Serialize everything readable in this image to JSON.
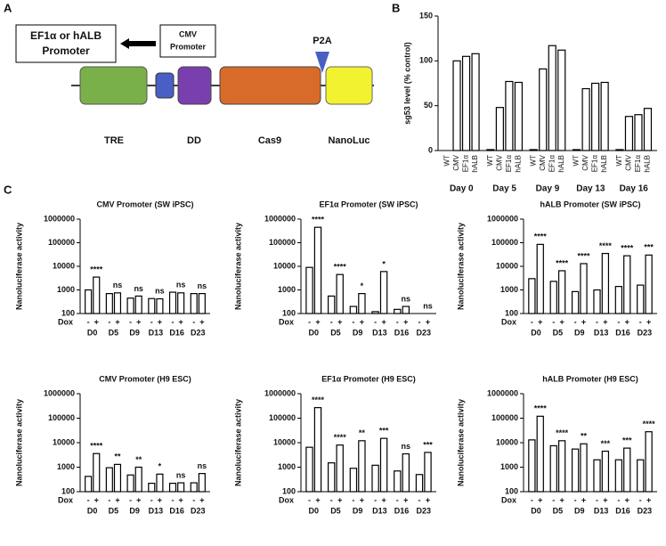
{
  "panel_labels": [
    "A",
    "B",
    "C"
  ],
  "diagram": {
    "target_promoter": [
      "EF1α or hALB",
      "Promoter"
    ],
    "cmv_promoter": [
      "CMV",
      "Promoter"
    ],
    "p2a": "P2A",
    "parts": [
      "TRE",
      "DD",
      "Cas9",
      "NanoLuc"
    ]
  },
  "chart_data": [
    {
      "type": "bar",
      "ylabel": "sg53 level (% control)",
      "categories": [
        "WT",
        "CMV",
        "EF1α",
        "hALB",
        "WT",
        "CMV",
        "EF1α",
        "hALB",
        "WT",
        "CMV",
        "EF1α",
        "hALB",
        "WT",
        "CMV",
        "EF1α",
        "hALB",
        "WT",
        "CMV",
        "EF1α",
        "hALB"
      ],
      "groups": [
        "Day 0",
        "Day 5",
        "Day 9",
        "Day 13",
        "Day 16"
      ],
      "values": [
        0,
        100,
        105,
        108,
        1,
        48,
        77,
        76,
        1,
        91,
        117,
        112,
        1,
        69,
        75,
        76,
        1,
        38,
        40,
        47
      ],
      "color": "#ffffff",
      "ylim": [
        0,
        150
      ],
      "yticks": [
        0,
        50,
        100,
        150
      ]
    },
    {
      "type": "bar",
      "title": "CMV Promoter (SW iPSC)",
      "ylabel": "Nanoluciferase activity",
      "xlabel": "Dox",
      "categories": [
        "-",
        "+",
        "-",
        "+",
        "-",
        "+",
        "-",
        "+",
        "-",
        "+",
        "-",
        "+"
      ],
      "groups": [
        "D0",
        "D5",
        "D9",
        "D13",
        "D16",
        "D23"
      ],
      "values": [
        1000,
        3500,
        700,
        750,
        450,
        550,
        430,
        420,
        800,
        750,
        700,
        700
      ],
      "annotations": [
        "****",
        "ns",
        "ns",
        "ns",
        "ns",
        "ns"
      ],
      "color": "#ffffff",
      "log": true,
      "ylim": [
        100,
        1000000
      ],
      "yticks": [
        100,
        1000,
        10000,
        100000,
        1000000
      ]
    },
    {
      "type": "bar",
      "title": "EF1α Promoter (SW iPSC)",
      "ylabel": "Nanoluciferase activity",
      "xlabel": "Dox",
      "categories": [
        "-",
        "+",
        "-",
        "+",
        "-",
        "+",
        "-",
        "+",
        "-",
        "+",
        "-",
        "+"
      ],
      "groups": [
        "D0",
        "D5",
        "D9",
        "D13",
        "D16",
        "D23"
      ],
      "values": [
        9000,
        450000,
        550,
        4500,
        200,
        700,
        120,
        6000,
        150,
        200,
        null,
        null
      ],
      "annotations": [
        "****",
        "****",
        "*",
        "*",
        "ns",
        "ns"
      ],
      "color": "#ffffff",
      "log": true,
      "ylim": [
        100,
        1000000
      ],
      "yticks": [
        100,
        1000,
        10000,
        100000,
        1000000
      ]
    },
    {
      "type": "bar",
      "title": "hALB Promoter (SW iPSC)",
      "ylabel": "Nanoluciferase activity",
      "xlabel": "Dox",
      "categories": [
        "-",
        "+",
        "-",
        "+",
        "-",
        "+",
        "-",
        "+",
        "-",
        "+",
        "-",
        "+"
      ],
      "groups": [
        "D0",
        "D5",
        "D9",
        "D13",
        "D16",
        "D23"
      ],
      "values": [
        3000,
        85000,
        2300,
        6500,
        850,
        13000,
        1000,
        35000,
        1400,
        28000,
        1600,
        30000
      ],
      "annotations": [
        "****",
        "****",
        "****",
        "****",
        "****",
        "***"
      ],
      "color": "#ffffff",
      "log": true,
      "ylim": [
        100,
        1000000
      ],
      "yticks": [
        100,
        1000,
        10000,
        100000,
        1000000
      ]
    },
    {
      "type": "bar",
      "title": "CMV Promoter (H9 ESC)",
      "ylabel": "Nanoluciferase activity",
      "xlabel": "Dox",
      "categories": [
        "-",
        "+",
        "-",
        "+",
        "-",
        "+",
        "-",
        "+",
        "-",
        "+",
        "-",
        "+"
      ],
      "groups": [
        "D0",
        "D5",
        "D9",
        "D13",
        "D16",
        "D23"
      ],
      "values": [
        420,
        3600,
        950,
        1300,
        480,
        1000,
        220,
        520,
        220,
        230,
        230,
        550
      ],
      "annotations": [
        "****",
        "**",
        "**",
        "*",
        "ns",
        "ns"
      ],
      "color": "#ffffff",
      "log": true,
      "ylim": [
        100,
        1000000
      ],
      "yticks": [
        100,
        1000,
        10000,
        100000,
        1000000
      ]
    },
    {
      "type": "bar",
      "title": "EF1α Promoter (H9 ESC)",
      "ylabel": "Nanoluciferase activity",
      "xlabel": "Dox",
      "categories": [
        "-",
        "+",
        "-",
        "+",
        "-",
        "+",
        "-",
        "+",
        "-",
        "+",
        "-",
        "+"
      ],
      "groups": [
        "D0",
        "D5",
        "D9",
        "D13",
        "D16",
        "D23"
      ],
      "values": [
        6500,
        270000,
        1500,
        8000,
        900,
        12000,
        1200,
        15000,
        700,
        3500,
        500,
        4000
      ],
      "annotations": [
        "****",
        "****",
        "**",
        "***",
        "ns",
        "***"
      ],
      "color": "#ffffff",
      "log": true,
      "ylim": [
        100,
        1000000
      ],
      "yticks": [
        100,
        1000,
        10000,
        100000,
        1000000
      ]
    },
    {
      "type": "bar",
      "title": "hALB Promoter (H9 ESC)",
      "ylabel": "Nanoluciferase activity",
      "xlabel": "Dox",
      "categories": [
        "-",
        "+",
        "-",
        "+",
        "-",
        "+",
        "-",
        "+",
        "-",
        "+",
        "-",
        "+"
      ],
      "groups": [
        "D0",
        "D5",
        "D9",
        "D13",
        "D16",
        "D23"
      ],
      "values": [
        13000,
        120000,
        7500,
        12000,
        5500,
        9000,
        2000,
        4500,
        2000,
        6000,
        2000,
        28000
      ],
      "annotations": [
        "****",
        "****",
        "**",
        "***",
        "***",
        "****"
      ],
      "color": "#ffffff",
      "log": true,
      "ylim": [
        100,
        1000000
      ],
      "yticks": [
        100,
        1000,
        10000,
        100000,
        1000000
      ]
    }
  ]
}
